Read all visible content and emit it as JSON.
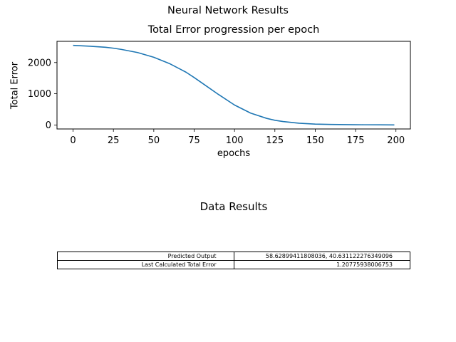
{
  "figure": {
    "suptitle": "Neural Network Results"
  },
  "chart_data": {
    "type": "line",
    "title": "Total Error progression per epoch",
    "xlabel": "epochs",
    "ylabel": "Total Error",
    "xlim": [
      -9.95,
      208.95
    ],
    "ylim": [
      -128,
      2680
    ],
    "xticks": [
      0,
      25,
      50,
      75,
      100,
      125,
      150,
      175,
      200
    ],
    "yticks": [
      0,
      1000,
      2000
    ],
    "grid": false,
    "line_color": "#1f77b4",
    "series": [
      {
        "x": [
          0,
          10,
          20,
          25,
          30,
          40,
          50,
          60,
          70,
          75,
          80,
          90,
          100,
          110,
          120,
          125,
          130,
          140,
          150,
          160,
          170,
          175,
          180,
          190,
          199
        ],
        "values": [
          2550,
          2525,
          2490,
          2460,
          2420,
          2320,
          2170,
          1960,
          1690,
          1520,
          1340,
          980,
          640,
          380,
          210,
          150,
          110,
          55,
          28,
          16,
          10,
          8,
          6,
          4,
          1.2
        ]
      }
    ]
  },
  "data_results": {
    "title": "Data Results",
    "rows": [
      {
        "label": "Predicted Output",
        "value": "58.62899411808036, 40.631122276349096"
      },
      {
        "label": "Last Calculated Total Error",
        "value": "1.20775938006753"
      }
    ]
  }
}
